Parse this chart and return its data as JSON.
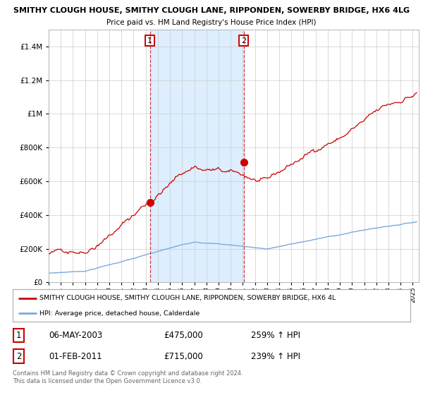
{
  "title_line1": "SMITHY CLOUGH HOUSE, SMITHY CLOUGH LANE, RIPPONDEN, SOWERBY BRIDGE, HX6 4LG",
  "title_line2": "Price paid vs. HM Land Registry's House Price Index (HPI)",
  "sale1_date_x": 2003.35,
  "sale1_price": 475000,
  "sale1_label": "1",
  "sale2_date_x": 2011.08,
  "sale2_price": 715000,
  "sale2_label": "2",
  "legend_line1": "SMITHY CLOUGH HOUSE, SMITHY CLOUGH LANE, RIPPONDEN, SOWERBY BRIDGE, HX6 4L",
  "legend_line2": "HPI: Average price, detached house, Calderdale",
  "table_row1": [
    "1",
    "06-MAY-2003",
    "£475,000",
    "259% ↑ HPI"
  ],
  "table_row2": [
    "2",
    "01-FEB-2011",
    "£715,000",
    "239% ↑ HPI"
  ],
  "footnote1": "Contains HM Land Registry data © Crown copyright and database right 2024.",
  "footnote2": "This data is licensed under the Open Government Licence v3.0.",
  "hpi_color": "#7aaadd",
  "price_color": "#cc0000",
  "bg_color": "#ffffff",
  "grid_color": "#cccccc",
  "shade_color": "#ddeeff",
  "ylim_max": 1500000,
  "ylim_min": 0,
  "xmin": 1995.0,
  "xmax": 2025.5
}
